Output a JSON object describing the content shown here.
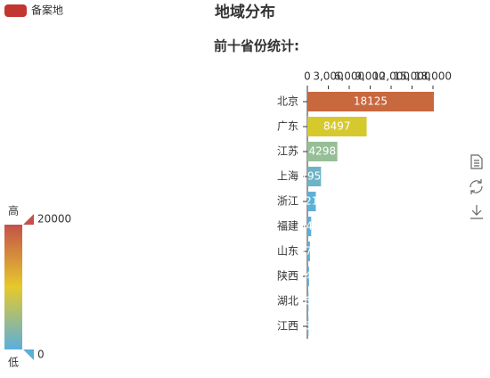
{
  "chart_data": {
    "type": "bar",
    "orientation": "horizontal",
    "title": "地域分布",
    "subtitle": "前十省份统计:",
    "legend": {
      "name": "备案地",
      "color": "#c23531"
    },
    "categories": [
      "北京",
      "广东",
      "江苏",
      "上海",
      "浙江",
      "福建",
      "山东",
      "陕西",
      "湖北",
      "江西"
    ],
    "values": [
      18125,
      8497,
      4298,
      1955,
      1216,
      549,
      371,
      240,
      164,
      159
    ],
    "colors": [
      "#c8683f",
      "#d6c92e",
      "#96bf97",
      "#6db3c8",
      "#5fb0d6",
      "#5aafdd",
      "#5aafdd",
      "#5aafdd",
      "#5aafdd",
      "#5aafdd"
    ],
    "xlim": [
      0,
      18000
    ],
    "xticks": [
      0,
      {
        "value": 3000,
        "label": "3,000"
      },
      {
        "value": 6000,
        "label": "6,000"
      },
      {
        "value": 9000,
        "label": "9,000"
      },
      {
        "value": 12000,
        "label": "12,000"
      },
      {
        "value": 15000,
        "label": "15,000"
      },
      {
        "value": 18000,
        "label": "18,000"
      }
    ],
    "visual_map": {
      "max": 20000,
      "min": 0,
      "high_text": "高",
      "low_text": "低",
      "colors": [
        "#c4514a",
        "#e6c92c",
        "#5aafdd"
      ]
    }
  }
}
